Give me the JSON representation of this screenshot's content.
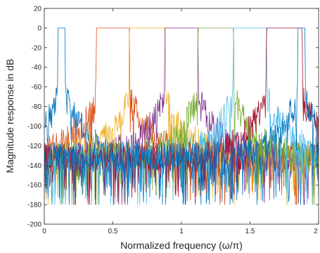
{
  "chart_data": {
    "type": "line",
    "title": "",
    "xlabel": "Normalized frequency (ω/π)",
    "ylabel": "Magnitude response in dB",
    "xlim": [
      0,
      2
    ],
    "ylim": [
      -200,
      20
    ],
    "xticks": [
      0,
      0.5,
      1,
      1.5,
      2
    ],
    "xtick_labels": [
      "0",
      "0.5",
      "1",
      "1.5",
      "2"
    ],
    "yticks": [
      20,
      0,
      -20,
      -40,
      -60,
      -80,
      -100,
      -120,
      -140,
      -160,
      -180,
      -200
    ],
    "ytick_labels": [
      "20",
      "0",
      "-20",
      "-40",
      "-60",
      "-80",
      "-100",
      "-120",
      "-140",
      "-160",
      "-180",
      "-200"
    ],
    "grid": false,
    "legend": "none",
    "passband_level_db": 0,
    "stopband_ripple_top_db": -60,
    "noise_floor_db": [
      -70,
      -180
    ],
    "series": [
      {
        "color": "#0072BD",
        "passband": [
          0.1,
          0.15
        ]
      },
      {
        "color": "#D95319",
        "passband": [
          0.38,
          0.62
        ]
      },
      {
        "color": "#EDB120",
        "passband": [
          0.62,
          0.88
        ]
      },
      {
        "color": "#7E2F8E",
        "passband": [
          0.88,
          1.12
        ]
      },
      {
        "color": "#77AC30",
        "passband": [
          1.12,
          1.38
        ]
      },
      {
        "color": "#4DBEEE",
        "passband": [
          1.38,
          1.62
        ]
      },
      {
        "color": "#A2142F",
        "passband": [
          1.62,
          1.88
        ]
      },
      {
        "color": "#0072BD",
        "passband": [
          1.85,
          1.9
        ]
      }
    ]
  }
}
